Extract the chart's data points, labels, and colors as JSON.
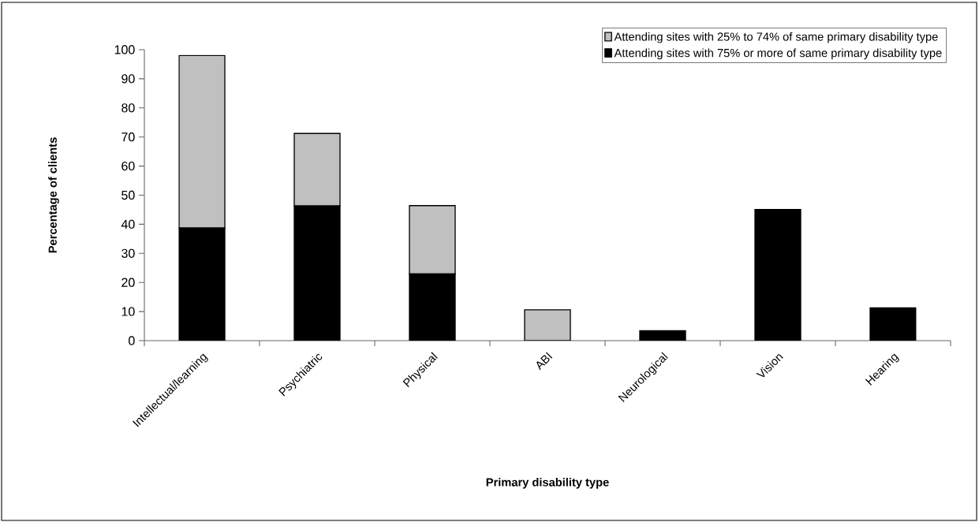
{
  "chart_data": {
    "type": "bar",
    "stacked": true,
    "xlabel": "Primary disability type",
    "ylabel": "Percentage of clients",
    "categories": [
      "Intellectual/learning",
      "Psychiatric",
      "Physical",
      "ABI",
      "Neurological",
      "Vision",
      "Hearing"
    ],
    "series": [
      {
        "name": "Attending sites with 75% or more of same primary disability type",
        "color": "#000000",
        "values": [
          38.7,
          46.3,
          22.9,
          0,
          3.4,
          45.1,
          11.3
        ]
      },
      {
        "name": "Attending sites with 25% to 74% of same primary disability type",
        "color": "#c0c0c0",
        "values": [
          59.3,
          24.9,
          23.5,
          10.6,
          0,
          0,
          0
        ]
      }
    ],
    "ylim": [
      0,
      100
    ],
    "yticks": [
      0,
      10,
      20,
      30,
      40,
      50,
      60,
      70,
      80,
      90,
      100
    ],
    "legend": "top right"
  }
}
